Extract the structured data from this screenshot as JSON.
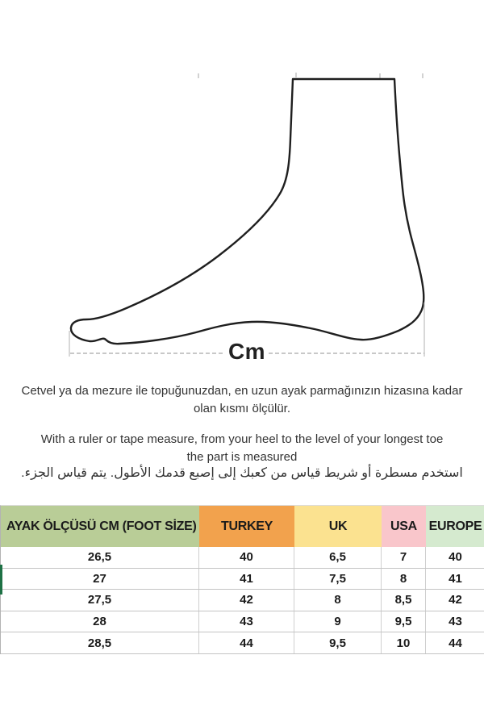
{
  "measure": {
    "unit_label": "Cm"
  },
  "instructions": {
    "turkish_line1": "Cetvel ya da mezure ile topuğunuzdan, en uzun ayak parmağınızın hizasına kadar",
    "turkish_line2": "olan kısmı ölçülür.",
    "english_line1": "With a ruler or tape measure, from your heel to the level of your longest toe",
    "english_line2": "the part is measured",
    "arabic": "استخدم مسطرة أو شريط قياس من كعبك إلى إصبع قدمك الأطول.  يتم قياس الجزء."
  },
  "size_table": {
    "columns": [
      {
        "label": "AYAK ÖLÇÜSÜ CM (FOOT SİZE)",
        "bg": "#b9cd97"
      },
      {
        "label": "TURKEY",
        "bg": "#f2a24d"
      },
      {
        "label": "UK",
        "bg": "#fbe290"
      },
      {
        "label": "USA",
        "bg": "#f9c6cb"
      },
      {
        "label": "EUROPE",
        "bg": "#d5eacf"
      }
    ],
    "rows": [
      [
        "26,5",
        "40",
        "6,5",
        "7",
        "40"
      ],
      [
        "27",
        "41",
        "7,5",
        "8",
        "41"
      ],
      [
        "27,5",
        "42",
        "8",
        "8,5",
        "42"
      ],
      [
        "28",
        "43",
        "9",
        "9,5",
        "43"
      ],
      [
        "28,5",
        "44",
        "9,5",
        "10",
        "44"
      ]
    ]
  },
  "colors": {
    "foot_outline": "#1f1f1f",
    "dashed_line": "#a8a8a8",
    "excel_selection_green": "#1e7145"
  }
}
